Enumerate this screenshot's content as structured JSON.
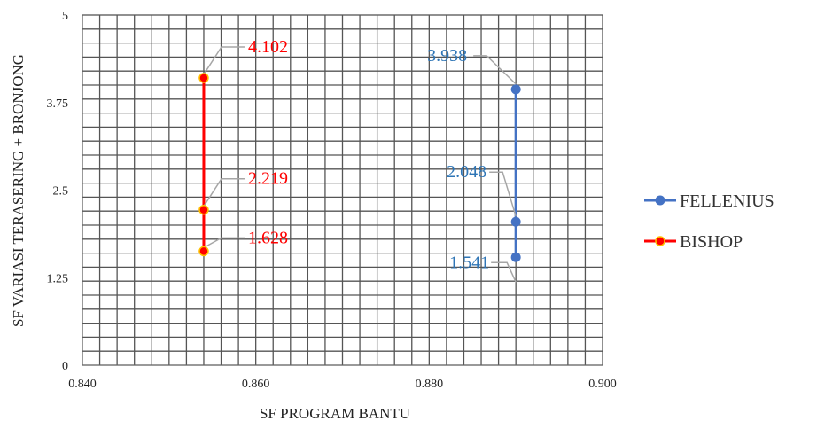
{
  "chart_data": {
    "type": "scatter",
    "xlabel": "SF PROGRAM BANTU",
    "ylabel": "SF VARIASI TERASERING + BRONJONG",
    "xlim": [
      0.84,
      0.9
    ],
    "ylim": [
      0,
      5
    ],
    "x_ticks": [
      "0.840",
      "0.860",
      "0.880",
      "0.900"
    ],
    "y_ticks": [
      "0",
      "1.25",
      "2.5",
      "3.75",
      "5"
    ],
    "grid": true,
    "legend_position": "right",
    "series": [
      {
        "name": "FELLENIUS",
        "color": "#4472C4",
        "label_color": "#2E75B6",
        "points": [
          {
            "x": 0.89,
            "y": 3.938,
            "label": "3.938"
          },
          {
            "x": 0.89,
            "y": 2.048,
            "label": "2.048"
          },
          {
            "x": 0.89,
            "y": 1.541,
            "label": "1.541"
          }
        ]
      },
      {
        "name": "BISHOP",
        "color": "#FF0000",
        "label_color": "#FF0000",
        "points": [
          {
            "x": 0.854,
            "y": 4.102,
            "label": "4.102"
          },
          {
            "x": 0.854,
            "y": 2.219,
            "label": "2.219"
          },
          {
            "x": 0.854,
            "y": 1.628,
            "label": "1.628"
          }
        ]
      }
    ]
  }
}
